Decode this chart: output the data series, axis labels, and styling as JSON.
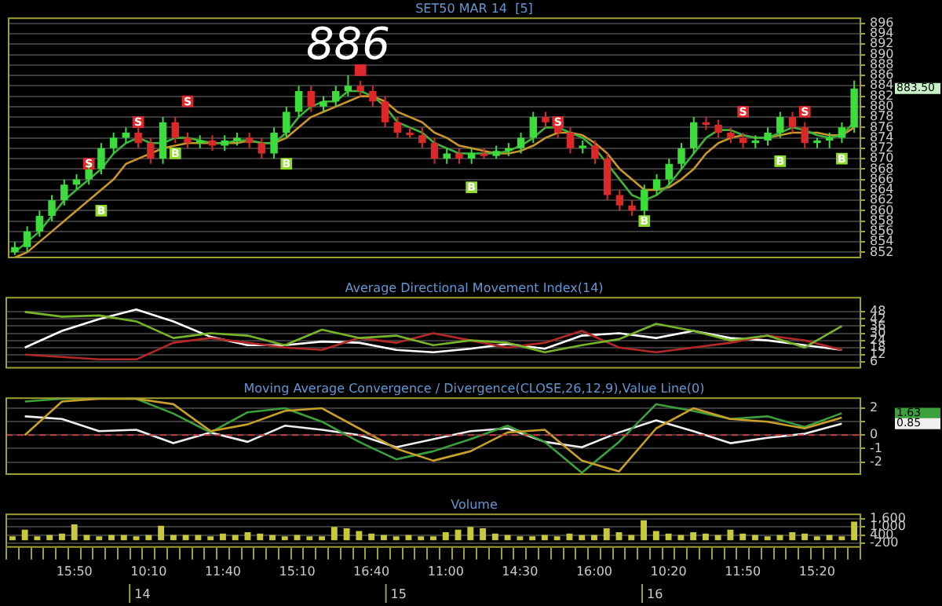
{
  "chart_data": [
    {
      "type": "candlestick",
      "title": "SET50 MAR 14  [5]",
      "categories": [
        null,
        null,
        null,
        null,
        null,
        null,
        null,
        null,
        null,
        null,
        null,
        null,
        null,
        null,
        null,
        null,
        null,
        null,
        null,
        null,
        null,
        null,
        null,
        null,
        null,
        null,
        null,
        null,
        null,
        null,
        null,
        null,
        null,
        null,
        null,
        null,
        null,
        null,
        null,
        null,
        null,
        null,
        null,
        null,
        null,
        null,
        null,
        null,
        null,
        null,
        null,
        null,
        null,
        null,
        null,
        null,
        null,
        null,
        null,
        null,
        null,
        null,
        null,
        null,
        null,
        null,
        null,
        null,
        null
      ],
      "ohlc": [
        [
          852,
          854,
          851.5,
          853
        ],
        [
          853,
          857,
          852,
          856
        ],
        [
          856,
          860,
          855,
          859
        ],
        [
          859,
          863,
          858,
          862
        ],
        [
          862,
          866,
          861,
          865
        ],
        [
          865,
          867,
          864,
          866
        ],
        [
          866,
          869,
          865,
          868
        ],
        [
          868,
          873,
          867,
          872
        ],
        [
          872,
          875,
          871,
          874
        ],
        [
          874,
          876,
          873,
          875
        ],
        [
          875,
          876,
          872,
          873
        ],
        [
          873,
          874,
          869,
          870
        ],
        [
          870,
          878,
          869,
          877
        ],
        [
          877,
          878,
          873,
          874
        ],
        [
          874,
          875,
          872,
          873
        ],
        [
          873,
          874.5,
          872,
          873.5
        ],
        [
          873.5,
          874.5,
          871.5,
          872.5
        ],
        [
          872.5,
          874.5,
          871.5,
          873.5
        ],
        [
          873.5,
          875,
          872.5,
          874
        ],
        [
          874,
          875,
          872,
          873
        ],
        [
          873,
          874,
          870,
          871
        ],
        [
          871,
          876,
          870,
          875
        ],
        [
          875,
          880,
          874,
          879
        ],
        [
          879,
          884,
          878,
          883
        ],
        [
          883,
          884,
          879,
          880
        ],
        [
          880,
          882,
          879,
          881
        ],
        [
          881,
          884,
          880,
          883
        ],
        [
          883,
          886,
          882,
          884
        ],
        [
          884,
          885,
          882,
          883
        ],
        [
          883,
          884,
          880,
          881
        ],
        [
          881,
          882,
          876,
          877
        ],
        [
          877,
          878,
          874,
          875
        ],
        [
          875,
          876,
          874,
          874.5
        ],
        [
          874.5,
          876,
          872,
          873
        ],
        [
          873,
          874,
          869,
          870
        ],
        [
          870,
          872,
          869,
          871
        ],
        [
          871,
          872,
          869,
          870
        ],
        [
          870,
          872,
          869,
          871
        ],
        [
          871,
          872,
          870,
          870.5
        ],
        [
          870.5,
          872.5,
          870,
          871.5
        ],
        [
          871.5,
          873,
          870.5,
          872
        ],
        [
          872,
          875,
          871,
          874
        ],
        [
          874,
          879,
          873,
          878
        ],
        [
          878,
          879,
          876,
          877
        ],
        [
          877,
          878,
          874,
          875
        ],
        [
          875,
          876,
          871,
          872
        ],
        [
          872,
          873.5,
          871,
          872.5
        ],
        [
          872.5,
          873.5,
          869,
          870
        ],
        [
          870,
          871,
          862,
          863
        ],
        [
          863,
          864,
          860,
          861
        ],
        [
          861,
          862,
          859,
          860
        ],
        [
          860,
          865,
          859,
          864
        ],
        [
          864,
          867,
          863,
          866
        ],
        [
          866,
          870,
          865,
          869
        ],
        [
          869,
          873,
          868,
          872
        ],
        [
          872,
          878,
          871,
          877
        ],
        [
          877,
          878,
          875.5,
          876.5
        ],
        [
          876.5,
          877.5,
          874,
          875
        ],
        [
          875,
          876,
          873,
          874
        ],
        [
          874,
          875,
          872,
          873
        ],
        [
          873,
          874.5,
          872,
          873.5
        ],
        [
          873.5,
          876,
          872.5,
          875
        ],
        [
          875,
          879,
          874,
          878
        ],
        [
          878,
          879,
          875,
          876
        ],
        [
          876,
          877,
          872,
          873
        ],
        [
          873,
          874,
          872,
          873.5
        ],
        [
          873.5,
          875,
          872,
          874
        ],
        [
          874,
          877,
          873,
          876
        ],
        [
          876,
          885,
          875,
          883.5
        ]
      ],
      "series": [
        {
          "type": "line",
          "color": "#3cb43c",
          "values": [
            852,
            854,
            856,
            859,
            862,
            864,
            866,
            868,
            871,
            873,
            874,
            873,
            873,
            874,
            874,
            873.5,
            873,
            873,
            873.5,
            873.5,
            873,
            873,
            875,
            878,
            880,
            881,
            881,
            883,
            883,
            882,
            880,
            877,
            876,
            875,
            873,
            872,
            871,
            871,
            871,
            871,
            871.5,
            872.5,
            874,
            876,
            876,
            875,
            874,
            872,
            869,
            866,
            863,
            862,
            863,
            865,
            868,
            871,
            874,
            875.5,
            875.5,
            874.5,
            874,
            874,
            875,
            876,
            875.5,
            874.5,
            874,
            874.5,
            877
          ]
        },
        {
          "type": "line",
          "color": "#c8962d",
          "values": [
            851,
            852,
            854,
            856,
            858,
            860,
            862,
            864,
            866,
            869,
            870,
            871,
            872,
            872.5,
            873,
            873,
            873,
            873,
            873,
            873.5,
            873,
            873,
            874,
            876,
            878,
            879,
            880,
            881,
            882,
            882,
            881,
            879,
            878,
            877,
            875,
            874,
            872.5,
            872,
            871.5,
            871,
            871,
            871.5,
            872.5,
            874,
            875,
            875,
            874.5,
            873,
            871,
            868,
            866,
            864,
            864,
            864.5,
            866,
            868,
            871,
            873,
            874,
            874.5,
            874,
            874,
            874.5,
            875,
            875,
            875,
            874.5,
            874.5,
            876
          ]
        },
        {
          "type": "scatter",
          "marker": "square",
          "color": "#e0282d",
          "values": [
            null,
            null,
            null,
            null,
            null,
            null,
            869,
            null,
            null,
            null,
            877,
            null,
            null,
            null,
            881,
            null,
            null,
            null,
            null,
            null,
            null,
            null,
            null,
            null,
            null,
            null,
            null,
            null,
            887,
            null,
            null,
            null,
            null,
            null,
            null,
            null,
            null,
            null,
            null,
            null,
            null,
            null,
            null,
            null,
            877,
            null,
            null,
            null,
            null,
            null,
            null,
            null,
            null,
            null,
            null,
            null,
            null,
            null,
            null,
            879,
            null,
            null,
            null,
            null,
            879,
            null,
            null,
            null,
            null
          ],
          "value_labels": [
            null,
            null,
            null,
            null,
            null,
            null,
            "S",
            null,
            null,
            null,
            "S",
            null,
            null,
            null,
            "S",
            null,
            null,
            null,
            null,
            null,
            null,
            null,
            null,
            null,
            null,
            null,
            null,
            null,
            null,
            null,
            null,
            null,
            null,
            null,
            null,
            null,
            null,
            null,
            null,
            null,
            null,
            null,
            null,
            null,
            "S",
            null,
            null,
            null,
            null,
            null,
            null,
            null,
            null,
            null,
            null,
            null,
            null,
            null,
            null,
            "S",
            null,
            null,
            null,
            null,
            "S",
            null,
            null,
            null,
            null
          ]
        },
        {
          "type": "scatter",
          "marker": "square",
          "color": "#8cdc28",
          "values": [
            null,
            null,
            null,
            null,
            null,
            null,
            null,
            860,
            null,
            null,
            null,
            null,
            null,
            871,
            null,
            null,
            null,
            null,
            null,
            null,
            null,
            null,
            869,
            null,
            null,
            null,
            null,
            null,
            null,
            null,
            null,
            null,
            null,
            null,
            null,
            null,
            null,
            864.5,
            null,
            null,
            null,
            null,
            null,
            null,
            null,
            null,
            null,
            null,
            null,
            null,
            null,
            858,
            null,
            null,
            null,
            null,
            null,
            null,
            null,
            null,
            null,
            null,
            869.5,
            null,
            null,
            null,
            null,
            870,
            null
          ],
          "value_labels": [
            null,
            null,
            null,
            null,
            null,
            null,
            null,
            "B",
            null,
            null,
            null,
            null,
            null,
            "B",
            null,
            null,
            null,
            null,
            null,
            null,
            null,
            null,
            "B",
            null,
            null,
            null,
            null,
            null,
            null,
            null,
            null,
            null,
            null,
            null,
            null,
            null,
            null,
            "B",
            null,
            null,
            null,
            null,
            null,
            null,
            null,
            null,
            null,
            null,
            null,
            null,
            null,
            "B",
            null,
            null,
            null,
            null,
            null,
            null,
            null,
            null,
            null,
            null,
            "B",
            null,
            null,
            null,
            null,
            "B",
            null
          ]
        }
      ],
      "ylim": [
        851,
        897
      ],
      "yticks": [
        852,
        854,
        856,
        858,
        860,
        862,
        864,
        866,
        868,
        870,
        872,
        874,
        876,
        878,
        880,
        882,
        884,
        886,
        888,
        890,
        892,
        894,
        896
      ],
      "grid": true,
      "tick_labels": "y",
      "annotations": [
        "886",
        "883.50"
      ]
    },
    {
      "type": "line",
      "title": "Average Directional Movement Index(14)",
      "categories": [
        null,
        null,
        null,
        null,
        null,
        null,
        null,
        null,
        null,
        null,
        null,
        null,
        null,
        null,
        null,
        null,
        null,
        null,
        null,
        null,
        null,
        null,
        null
      ],
      "series": [
        {
          "color": "#78b428",
          "values": [
            48,
            44,
            45,
            40,
            26,
            30,
            28,
            20,
            33,
            26,
            28,
            20,
            24,
            22,
            14,
            20,
            25,
            38,
            32,
            24,
            28,
            18,
            36
          ]
        },
        {
          "color": "#b42828",
          "values": [
            12,
            10,
            8,
            8,
            22,
            26,
            22,
            18,
            16,
            26,
            22,
            30,
            24,
            18,
            22,
            32,
            18,
            14,
            18,
            22,
            28,
            24,
            16
          ]
        },
        {
          "color": "#ffffff",
          "values": [
            18,
            32,
            42,
            50,
            40,
            27,
            20,
            20,
            23,
            22,
            16,
            14,
            17,
            21,
            17,
            28,
            30,
            26,
            32,
            26,
            24,
            20,
            16
          ]
        }
      ],
      "ylim": [
        1,
        60
      ],
      "yticks": [
        6,
        12,
        18,
        24,
        30,
        36,
        42,
        48
      ],
      "grid": "y",
      "tick_labels": "y"
    },
    {
      "type": "line",
      "title": "Moving Average Convergence / Divergence(CLOSE,26,12,9),Value Line(0)",
      "categories": [
        null,
        null,
        null,
        null,
        null,
        null,
        null,
        null,
        null,
        null,
        null,
        null,
        null,
        null,
        null,
        null,
        null,
        null,
        null,
        null,
        null,
        null,
        null
      ],
      "series": [
        {
          "color": "#c8a028",
          "values": [
            0,
            2.5,
            2.7,
            2.7,
            2.3,
            0.3,
            0.8,
            1.8,
            2.0,
            0.5,
            -1.0,
            -1.9,
            -1.2,
            0.2,
            0.4,
            -1.9,
            -2.7,
            0.5,
            2.0,
            1.2,
            1.0,
            0.5,
            1.3
          ]
        },
        {
          "color": "#3ca03c",
          "values": [
            2.5,
            2.7,
            2.7,
            2.7,
            1.6,
            0.2,
            1.7,
            2.0,
            1.0,
            -0.5,
            -1.8,
            -1.2,
            -0.3,
            0.7,
            -0.5,
            -2.8,
            -0.5,
            2.3,
            1.8,
            1.2,
            1.4,
            0.6,
            1.63
          ]
        },
        {
          "color": "#f0f0f0",
          "values": [
            1.4,
            1.2,
            0.3,
            0.4,
            -0.6,
            0.2,
            -0.5,
            0.7,
            0.4,
            0,
            -0.9,
            -0.3,
            0.3,
            0.5,
            -0.5,
            -0.9,
            0.2,
            1.1,
            0.3,
            -0.6,
            -0.2,
            0.1,
            0.85
          ]
        }
      ],
      "ylim": [
        -2.9,
        2.75
      ],
      "yticks": [
        -2,
        -1,
        0,
        {
          "value": 1,
          "label": null
        },
        2
      ],
      "grid": "y",
      "tick_labels": "y",
      "ref_lines": [
        {
          "axis": "y",
          "value": 0,
          "color": "#c83c3c",
          "line_style": "dashed"
        }
      ],
      "annotations": [
        "1.63",
        "0.85"
      ]
    },
    {
      "type": "bar",
      "title": "Volume",
      "categories": [
        null,
        null,
        null,
        null,
        null,
        "15:50",
        null,
        null,
        null,
        null,
        null,
        "10:10",
        null,
        null,
        null,
        null,
        null,
        "11:40",
        null,
        null,
        null,
        null,
        null,
        "15:10",
        null,
        null,
        null,
        null,
        null,
        "16:40",
        null,
        null,
        null,
        null,
        null,
        "11:00",
        null,
        null,
        null,
        null,
        null,
        "14:30",
        null,
        null,
        null,
        null,
        null,
        "16:00",
        null,
        null,
        null,
        null,
        null,
        "10:20",
        null,
        null,
        null,
        null,
        null,
        "11:50",
        null,
        null,
        null,
        null,
        null,
        "15:20",
        null,
        null,
        null
      ],
      "color": "#c8c83c",
      "values": [
        300,
        800,
        300,
        400,
        500,
        1200,
        400,
        300,
        400,
        400,
        300,
        400,
        1100,
        400,
        400,
        400,
        300,
        500,
        400,
        600,
        500,
        400,
        300,
        400,
        300,
        300,
        1000,
        900,
        700,
        500,
        400,
        300,
        400,
        300,
        300,
        600,
        800,
        1000,
        900,
        500,
        400,
        300,
        300,
        400,
        300,
        500,
        400,
        400,
        900,
        600,
        400,
        1500,
        700,
        500,
        400,
        600,
        500,
        400,
        800,
        500,
        400,
        300,
        400,
        600,
        500,
        300,
        400,
        300,
        1400
      ],
      "ylim": [
        -500,
        1950
      ],
      "yticks": [
        -200,
        400,
        {
          "value": 1000,
          "label": "1,000"
        },
        {
          "value": 1600,
          "label": "1,600"
        }
      ],
      "grid": "y",
      "annotations": [
        "14",
        "15",
        "16"
      ]
    }
  ]
}
